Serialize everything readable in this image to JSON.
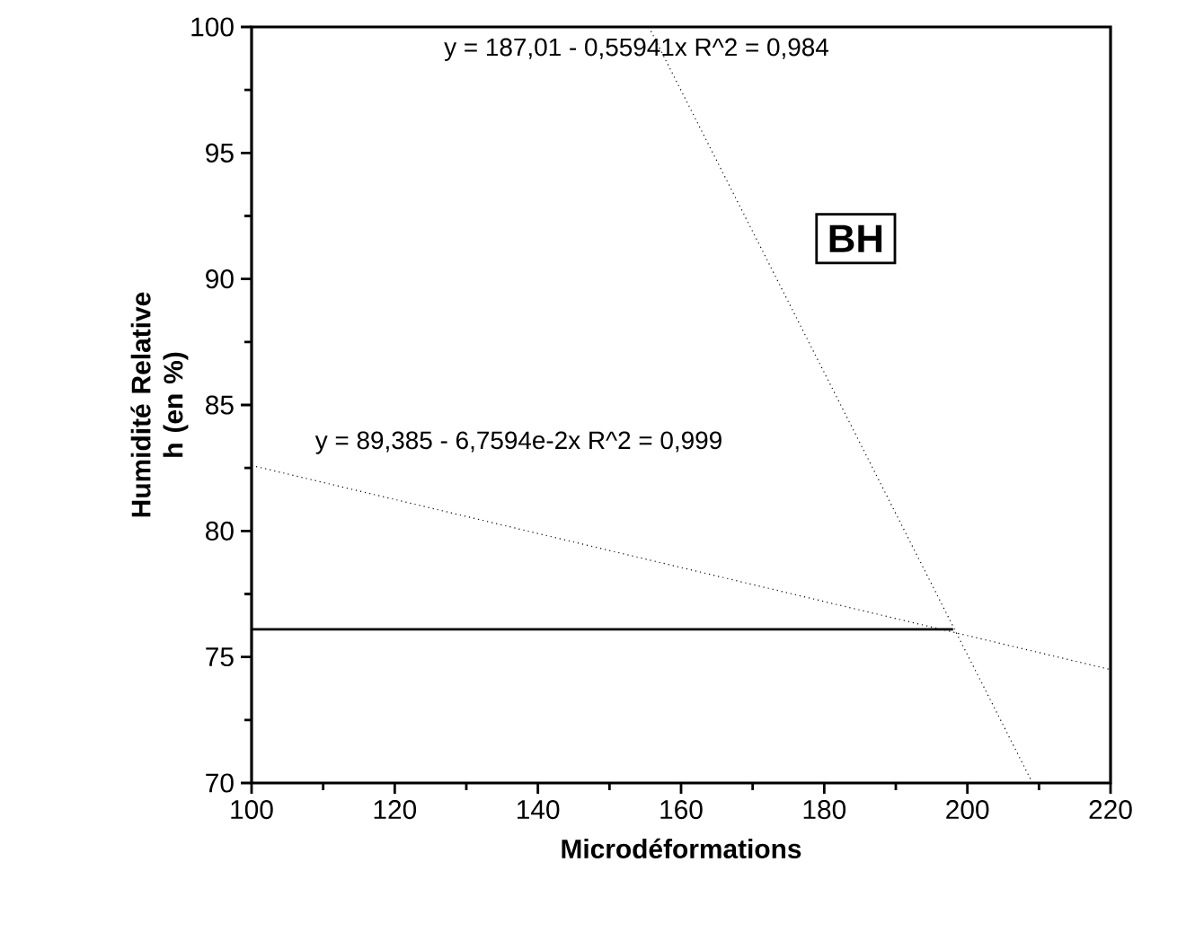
{
  "chart_data": {
    "type": "line",
    "xlabel": "Microdéformations",
    "ylabel": "Humidité Relative h (en %)",
    "xlim": [
      100,
      220
    ],
    "xticks": [
      100,
      120,
      140,
      160,
      180,
      200,
      220
    ],
    "ylim": [
      70,
      100
    ],
    "yticks": [
      70,
      75,
      80,
      85,
      90,
      95,
      100
    ],
    "grid": false,
    "marker": "none",
    "series": [
      {
        "color": "#000000",
        "line_style": "dotted",
        "x": [
          155.5,
          209.1
        ],
        "values": [
          100,
          70
        ]
      },
      {
        "color": "#000000",
        "line_style": "dotted",
        "x": [
          100,
          220
        ],
        "values": [
          82.6,
          74.5
        ]
      },
      {
        "color": "#000000",
        "line_style": "solid",
        "x": [
          100,
          198
        ],
        "values": [
          76.1,
          76.1
        ]
      }
    ],
    "annotations": [
      "y = 187,01 - 0,55941x   R^2 = 0,984",
      "y = 89,385 - 6,7594e-2x   R^2 = 0,999",
      "BH"
    ]
  }
}
